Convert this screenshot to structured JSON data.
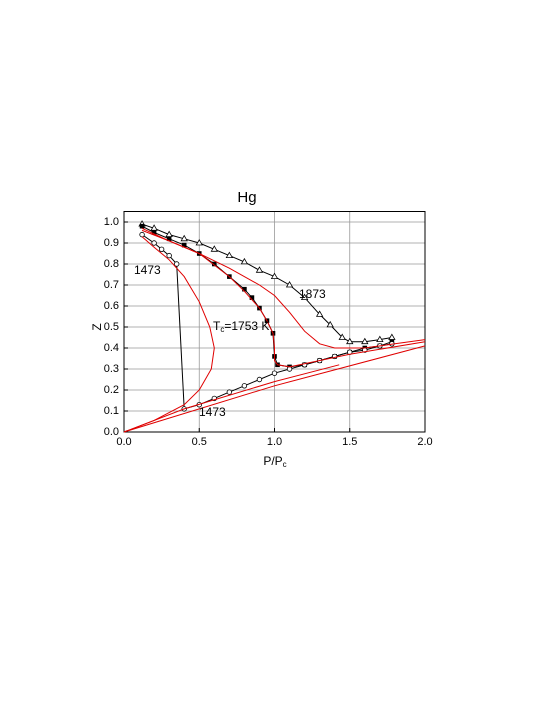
{
  "chart_data": {
    "type": "line",
    "title": "Hg",
    "xlabel": {
      "text": "P/P",
      "sub": "c"
    },
    "ylabel": "Z",
    "xlim": [
      0,
      2
    ],
    "ylim": [
      0,
      1.05
    ],
    "xticks": [
      {
        "value": 0,
        "label": "0.0"
      },
      0.5,
      {
        "value": 1,
        "label": "1.0"
      },
      1.5,
      {
        "value": 2,
        "label": "2.0"
      }
    ],
    "yticks": [
      {
        "value": 0,
        "label": "0.0"
      },
      0.1,
      0.2,
      0.3,
      0.4,
      0.5,
      0.6,
      0.7,
      0.8,
      0.9,
      {
        "value": 1,
        "label": "1.0"
      }
    ],
    "grid": true,
    "annotations": [
      {
        "text": "1473"
      },
      {
        "text": "1473"
      },
      {
        "text": "1873"
      },
      {
        "text": "T",
        "sub": "c",
        "text2": "=1753 K"
      }
    ],
    "series": [
      {
        "color": "#000000",
        "marker": "triangle",
        "x": [
          0.12,
          0.2,
          0.3,
          0.4,
          0.5,
          0.6,
          0.7,
          0.8,
          0.9,
          1.0,
          1.1,
          1.2,
          1.3,
          1.37,
          1.45,
          1.5,
          1.6,
          1.7,
          1.78
        ],
        "values": [
          0.99,
          0.97,
          0.94,
          0.92,
          0.9,
          0.87,
          0.84,
          0.81,
          0.77,
          0.74,
          0.7,
          0.64,
          0.56,
          0.51,
          0.45,
          0.43,
          0.43,
          0.44,
          0.45
        ]
      },
      {
        "color": "#000000",
        "marker": "square",
        "x": [
          0.12,
          0.2,
          0.3,
          0.4,
          0.5,
          0.6,
          0.7,
          0.8,
          0.85,
          0.9,
          0.95,
          0.99,
          1.0,
          1.02,
          1.1,
          1.2,
          1.3,
          1.4,
          1.5,
          1.6,
          1.7,
          1.78
        ],
        "values": [
          0.98,
          0.95,
          0.92,
          0.89,
          0.85,
          0.8,
          0.74,
          0.68,
          0.64,
          0.59,
          0.53,
          0.47,
          0.36,
          0.32,
          0.31,
          0.32,
          0.34,
          0.36,
          0.38,
          0.4,
          0.41,
          0.43
        ]
      },
      {
        "color": "#000000",
        "marker": "circle",
        "x": [
          0.12,
          0.2,
          0.25,
          0.3,
          0.35,
          0.4,
          0.5,
          0.6,
          0.7,
          0.8,
          0.9,
          1.0,
          1.1,
          1.2,
          1.3,
          1.4,
          1.5,
          1.6,
          1.7,
          1.78
        ],
        "values": [
          0.94,
          0.9,
          0.87,
          0.84,
          0.8,
          0.11,
          0.13,
          0.16,
          0.19,
          0.22,
          0.25,
          0.28,
          0.3,
          0.32,
          0.34,
          0.36,
          0.38,
          0.39,
          0.41,
          0.42
        ]
      },
      {
        "color": "#e00000",
        "x": [
          0.12,
          0.2,
          0.3,
          0.4,
          0.5,
          0.57,
          0.6,
          0.58,
          0.5,
          0.4,
          0.2,
          0
        ],
        "values": [
          0.93,
          0.88,
          0.82,
          0.74,
          0.62,
          0.5,
          0.4,
          0.3,
          0.2,
          0.13,
          0.055,
          0
        ]
      },
      {
        "color": "#e00000",
        "x": [
          0.12,
          0.3,
          0.5,
          0.7,
          0.8,
          0.9,
          0.95,
          0.99,
          1.0,
          1.0,
          1.02,
          1.1,
          1.5,
          2.0
        ],
        "values": [
          0.96,
          0.91,
          0.85,
          0.74,
          0.67,
          0.59,
          0.53,
          0.47,
          0.4,
          0.34,
          0.32,
          0.31,
          0.37,
          0.43
        ]
      },
      {
        "color": "#e00000",
        "x": [
          0.12,
          0.3,
          0.5,
          0.7,
          0.9,
          1.0,
          1.1,
          1.2,
          1.3,
          1.4,
          1.6,
          1.8,
          2.0
        ],
        "values": [
          0.97,
          0.91,
          0.85,
          0.78,
          0.7,
          0.65,
          0.57,
          0.48,
          0.42,
          0.4,
          0.4,
          0.42,
          0.44
        ]
      },
      {
        "color": "#e00000",
        "x": [
          0,
          0.4,
          1.0,
          1.43
        ],
        "values": [
          0,
          0.11,
          0.24,
          0.32
        ]
      },
      {
        "color": "#e00000",
        "x": [
          0,
          1.0,
          2.0
        ],
        "values": [
          0,
          0.22,
          0.41
        ]
      }
    ]
  }
}
